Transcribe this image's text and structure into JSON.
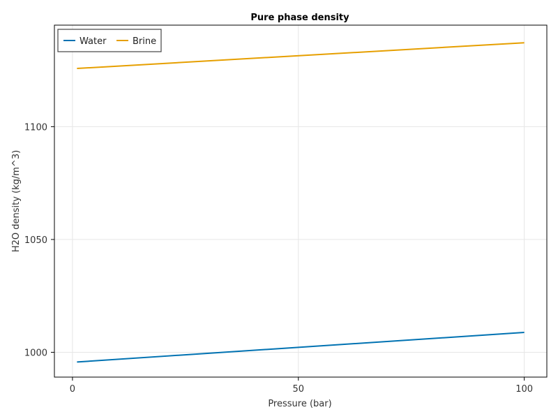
{
  "chart_data": {
    "type": "line",
    "title": "Pure phase density",
    "xlabel": "Pressure (bar)",
    "ylabel": "H2O density (kg/m^3)",
    "xlim": [
      -4,
      105
    ],
    "ylim": [
      989,
      1145
    ],
    "xticks": [
      0,
      50,
      100
    ],
    "yticks": [
      1000,
      1050,
      1100
    ],
    "grid": true,
    "legend_position": "top-left",
    "series": [
      {
        "name": "Water",
        "color": "#0072b2",
        "x": [
          1,
          100
        ],
        "y": [
          995.7,
          1008.8
        ]
      },
      {
        "name": "Brine",
        "color": "#e69f00",
        "x": [
          1,
          100
        ],
        "y": [
          1125.8,
          1137.2
        ]
      }
    ]
  }
}
